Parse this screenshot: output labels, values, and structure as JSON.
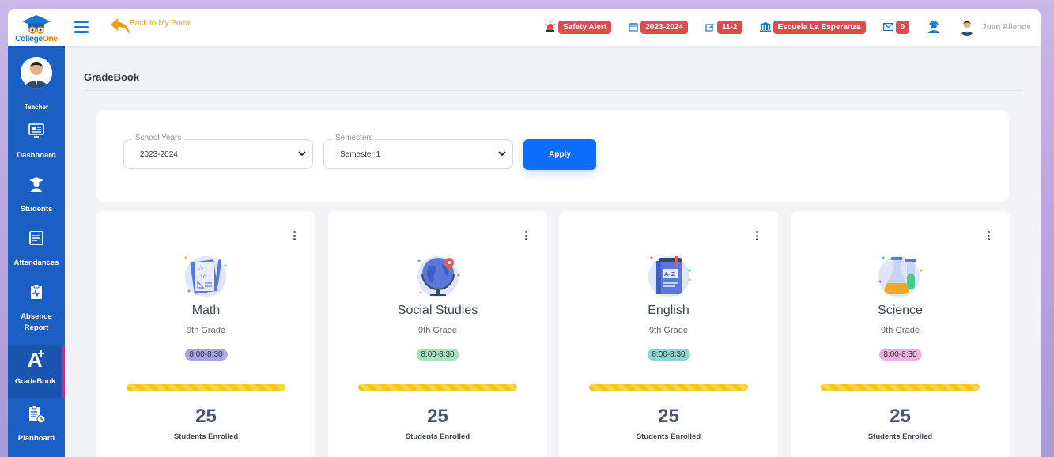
{
  "topbar": {
    "logo_main": "College",
    "logo_accent": "One",
    "back_label": "Back to My Portal",
    "safety_alert": "Safety Alert",
    "year": "2023-2024",
    "class_code": "11-2",
    "school": "Escuela La Esperanza",
    "messages": "0",
    "user_name": "Juan Allende"
  },
  "sidebar": {
    "role": "Teacher",
    "items": [
      {
        "label": "Dashboard"
      },
      {
        "label": "Students"
      },
      {
        "label": "Attendances"
      },
      {
        "label": "Absence Report"
      },
      {
        "label": "GradeBook"
      },
      {
        "label": "Planboard"
      }
    ]
  },
  "page": {
    "title": "GradeBook"
  },
  "filters": {
    "school_years_label": "School Years",
    "school_years_value": "2023-2024",
    "semesters_label": "Semesters",
    "semesters_value": "Semester 1",
    "apply_label": "Apply"
  },
  "courses": [
    {
      "name": "Math",
      "grade": "9th Grade",
      "time": "8:00-8:30",
      "enrolled": "25",
      "enrolled_label": "Students Enrolled",
      "time_color": "#a8a4ea",
      "icon": "math-book-icon"
    },
    {
      "name": "Social Studies",
      "grade": "9th Grade",
      "time": "8:00-8:30",
      "enrolled": "25",
      "enrolled_label": "Students Enrolled",
      "time_color": "#a6e3bd",
      "icon": "globe-icon"
    },
    {
      "name": "English",
      "grade": "9th Grade",
      "time": "8:00-8:30",
      "enrolled": "25",
      "enrolled_label": "Students Enrolled",
      "time_color": "#8fd6cf",
      "icon": "dictionary-icon"
    },
    {
      "name": "Science",
      "grade": "9th Grade",
      "time": "8:00-8:30",
      "enrolled": "25",
      "enrolled_label": "Students Enrolled",
      "time_color": "#f0b1e2",
      "icon": "flask-icon"
    }
  ],
  "colors": {
    "sidebar": "#1c5fc4",
    "accent": "#1976d2",
    "badge": "#e14b4b",
    "apply": "#0d6efd",
    "progress": "#f5c518",
    "active_marker": "#e91e63"
  }
}
